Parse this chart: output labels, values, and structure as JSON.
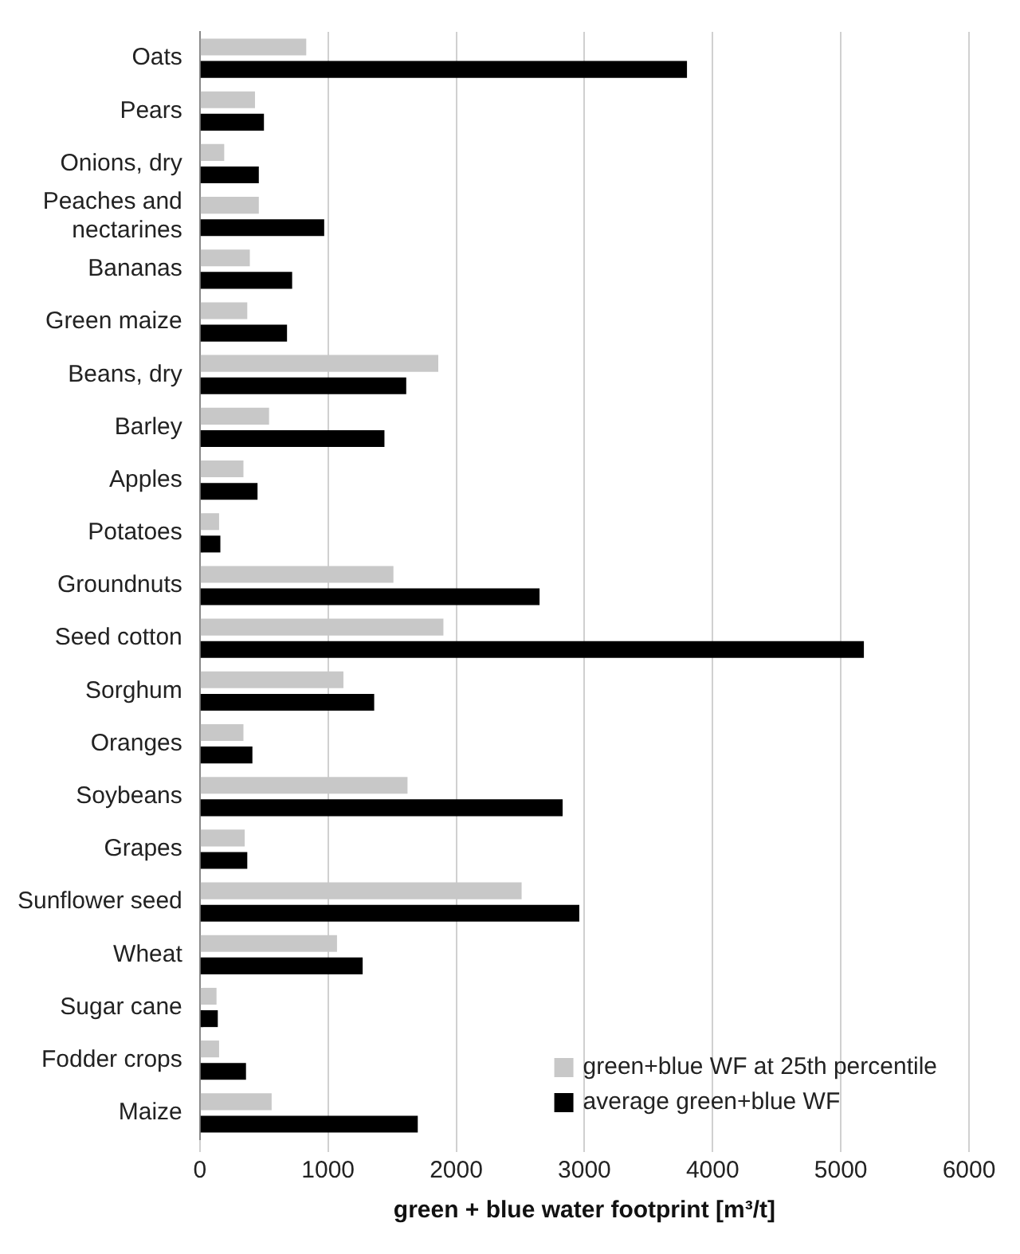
{
  "chart_data": {
    "type": "bar",
    "orientation": "horizontal",
    "xlabel": "green + blue water footprint [m³/t]",
    "categories": [
      "Oats",
      "Pears",
      "Onions, dry",
      "Peaches and nectarines",
      "Bananas",
      "Green maize",
      "Beans, dry",
      "Barley",
      "Apples",
      "Potatoes",
      "Groundnuts",
      "Seed cotton",
      "Sorghum",
      "Oranges",
      "Soybeans",
      "Grapes",
      "Sunflower seed",
      "Wheat",
      "Sugar cane",
      "Fodder crops",
      "Maize"
    ],
    "series": [
      {
        "name": "green+blue WF at 25th percentile",
        "color": "#c8c8c8",
        "values": [
          830,
          430,
          190,
          460,
          390,
          370,
          1860,
          540,
          340,
          150,
          1510,
          1900,
          1120,
          340,
          1620,
          350,
          2510,
          1070,
          130,
          150,
          560
        ]
      },
      {
        "name": "average green+blue WF",
        "color": "#000000",
        "values": [
          3800,
          500,
          460,
          970,
          720,
          680,
          1610,
          1440,
          450,
          160,
          2650,
          5180,
          1360,
          410,
          2830,
          370,
          2960,
          1270,
          140,
          360,
          1700
        ]
      }
    ],
    "xlim": [
      0,
      6000
    ],
    "xticks": [
      0,
      1000,
      2000,
      3000,
      4000,
      5000,
      6000
    ],
    "grid": "x",
    "legend": "bottom right"
  }
}
